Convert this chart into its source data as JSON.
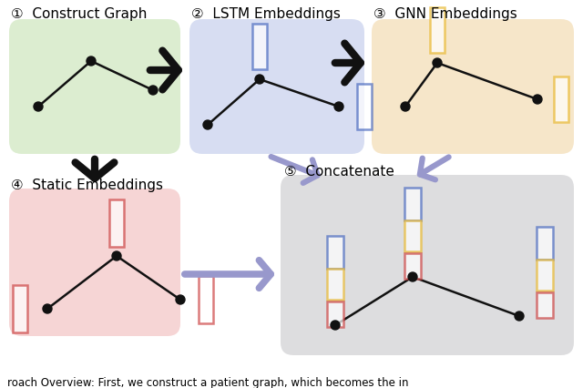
{
  "bg_color": "#ffffff",
  "panel_colors": {
    "construct": "#d6eac8",
    "lstm": "#d0d8f0",
    "gnn": "#f5e2c0",
    "static": "#f5cece",
    "concat": "#d8d8da"
  },
  "arrow_black": "#111111",
  "arrow_purple": "#9898cc",
  "node_color": "#111111",
  "rect_blue": "#4a6abf",
  "rect_yellow": "#e8b830",
  "rect_red": "#cc4444",
  "caption": "roach Overview: First, we construct a patient graph, which becomes the in",
  "labels": {
    "1": "①  Construct Graph",
    "2": "②  LSTM Embeddings",
    "3": "③  GNN Embeddings",
    "4": "④  Static Embeddings",
    "5": "⑤  Concatenate"
  }
}
